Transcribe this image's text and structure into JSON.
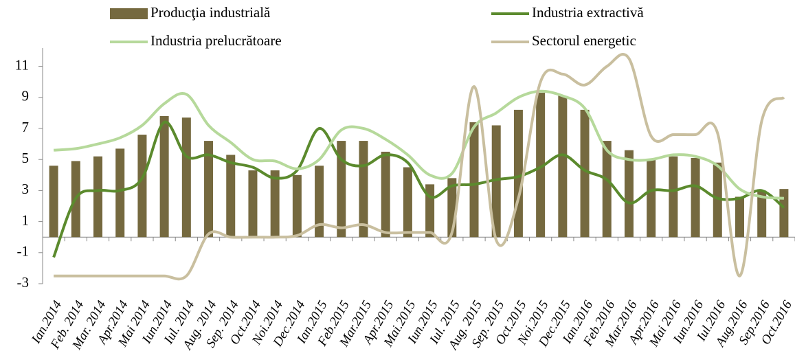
{
  "chart_data": {
    "type": "bar_line",
    "categories": [
      "Ian.2014",
      "Feb. 2014",
      "Mar. 2014",
      "Apr.2014",
      "Mai 2014",
      "Iun.2014",
      "Iul. 2014",
      "Aug. 2014",
      "Sep. 2014",
      "Oct.2014",
      "Noi.2014",
      "Dec.2014",
      "Ian.2015",
      "Feb.2015",
      "Mar.2015",
      "Apr.2015",
      "Mai.2015",
      "Iun.2015",
      "Iul. 2015",
      "Aug. 2015",
      "Sep. 2015",
      "Oct.2015",
      "Noi.2015",
      "Dec.2015",
      "Ian.2016",
      "Feb.2016",
      "Mar.2016",
      "Apr.2016",
      "Mai 2016",
      "Iun.2016",
      "Iul.2016",
      "Aug.2016",
      "Sep.2016",
      "Oct.2016"
    ],
    "series": [
      {
        "name": "Producţia industrială",
        "type": "bar",
        "color": "#75693f",
        "values": [
          4.6,
          4.9,
          5.2,
          5.7,
          6.6,
          7.8,
          7.7,
          6.2,
          5.3,
          4.3,
          4.3,
          4.0,
          4.6,
          6.2,
          6.2,
          5.5,
          4.5,
          3.4,
          3.8,
          7.4,
          7.2,
          8.2,
          9.3,
          9.1,
          8.2,
          6.2,
          5.6,
          5.0,
          5.2,
          5.1,
          4.8,
          2.6,
          3.0,
          3.1
        ]
      },
      {
        "name": "Industria extractivă",
        "type": "line",
        "color": "#5b8a2d",
        "values": [
          -1.3,
          2.5,
          3.0,
          3.0,
          3.8,
          7.4,
          5.2,
          5.3,
          4.8,
          4.5,
          3.8,
          4.3,
          7.0,
          5.0,
          4.6,
          5.3,
          4.8,
          2.6,
          3.3,
          3.4,
          3.7,
          3.9,
          4.5,
          5.3,
          4.3,
          3.7,
          2.2,
          3.0,
          3.0,
          3.3,
          2.5,
          2.5,
          3.0,
          1.9
        ]
      },
      {
        "name": "Industria prelucrătoare",
        "type": "line",
        "color": "#b6d99b",
        "values": [
          5.6,
          5.7,
          6.0,
          6.4,
          7.2,
          8.6,
          9.2,
          7.2,
          6.1,
          5.0,
          4.9,
          4.4,
          5.0,
          6.9,
          7.0,
          6.3,
          5.3,
          4.0,
          4.1,
          7.1,
          8.0,
          9.0,
          9.4,
          9.1,
          8.3,
          5.6,
          5.0,
          5.0,
          5.3,
          5.2,
          4.6,
          3.1,
          2.6,
          2.5
        ]
      },
      {
        "name": "Sectorul energetic",
        "type": "line",
        "color": "#c9bf9f",
        "values": [
          -2.5,
          -2.5,
          -2.5,
          -2.5,
          -2.5,
          -2.5,
          -2.5,
          0.2,
          0.0,
          0.0,
          0.0,
          0.1,
          0.8,
          0.6,
          0.8,
          0.3,
          0.3,
          0.3,
          0.3,
          9.7,
          -0.2,
          2.5,
          10.0,
          10.5,
          9.8,
          11.0,
          11.5,
          6.5,
          6.6,
          6.6,
          6.7,
          -2.5,
          7.5,
          9.0
        ]
      }
    ],
    "ylim": [
      -3,
      12
    ],
    "yticks": [
      -3,
      -1,
      1,
      3,
      5,
      7,
      9,
      11
    ],
    "legend": "top"
  }
}
